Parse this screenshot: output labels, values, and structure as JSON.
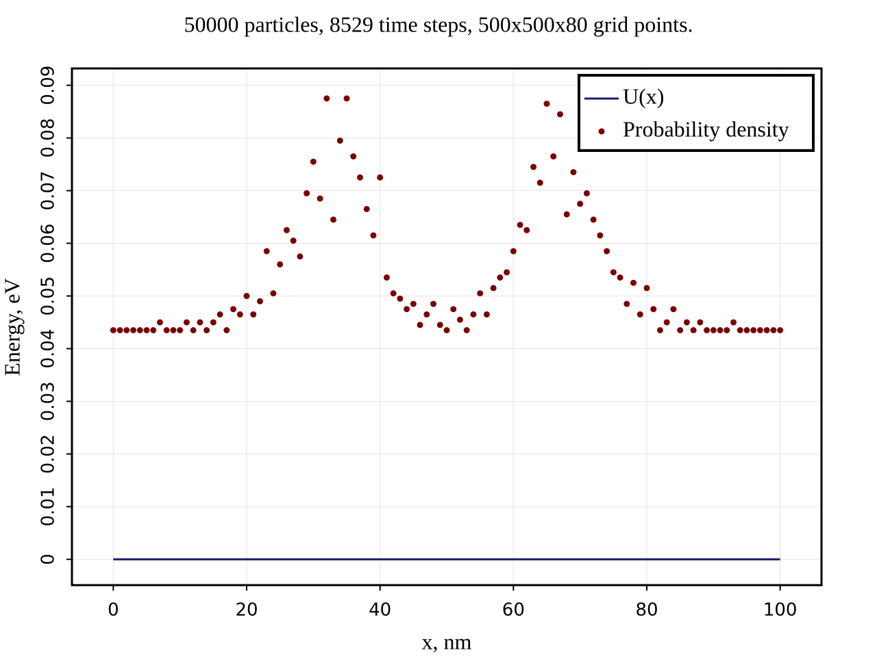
{
  "chart_data": {
    "type": "scatter",
    "title": "50000 particles, 8529 time steps, 500x500x80 grid points.",
    "xlabel": "x, nm",
    "ylabel": "Energy, eV",
    "xlim": [
      -6.2,
      106.2
    ],
    "ylim": [
      -0.0049,
      0.0932
    ],
    "xticks": [
      0,
      20,
      40,
      60,
      80,
      100
    ],
    "yticks": [
      0,
      0.01,
      0.02,
      0.03,
      0.04,
      0.05,
      0.06,
      0.07,
      0.08,
      0.09
    ],
    "grid": true,
    "legend": "upper right",
    "series": [
      {
        "name": "U(x)",
        "type": "line",
        "color": "#1a1a6e",
        "x": [
          0,
          100
        ],
        "values": [
          0,
          0
        ]
      },
      {
        "name": "Probability density",
        "type": "dot",
        "color": "#7a0000",
        "x": [
          0,
          1,
          2,
          3,
          4,
          5,
          6,
          7,
          8,
          9,
          10,
          11,
          12,
          13,
          14,
          15,
          16,
          17,
          18,
          19,
          20,
          21,
          22,
          23,
          24,
          25,
          26,
          27,
          28,
          29,
          30,
          31,
          32,
          33,
          34,
          35,
          36,
          37,
          38,
          39,
          40,
          41,
          42,
          43,
          44,
          45,
          46,
          47,
          48,
          49,
          50,
          51,
          52,
          53,
          54,
          55,
          56,
          57,
          58,
          59,
          60,
          61,
          62,
          63,
          64,
          65,
          66,
          67,
          68,
          69,
          70,
          71,
          72,
          73,
          74,
          75,
          76,
          77,
          78,
          79,
          80,
          81,
          82,
          83,
          84,
          85,
          86,
          87,
          88,
          89,
          90,
          91,
          92,
          93,
          94,
          95,
          96,
          97,
          98,
          99,
          100
        ],
        "values": [
          0.0435,
          0.0435,
          0.0435,
          0.0435,
          0.0435,
          0.0435,
          0.0435,
          0.045,
          0.0435,
          0.0435,
          0.0435,
          0.045,
          0.0435,
          0.045,
          0.0435,
          0.045,
          0.0465,
          0.0435,
          0.0475,
          0.0465,
          0.05,
          0.0465,
          0.049,
          0.0585,
          0.0505,
          0.056,
          0.0625,
          0.0605,
          0.0575,
          0.0695,
          0.0755,
          0.0685,
          0.0875,
          0.0645,
          0.0795,
          0.0875,
          0.0765,
          0.0725,
          0.0665,
          0.0615,
          0.0725,
          0.0535,
          0.0505,
          0.0495,
          0.0475,
          0.0485,
          0.0445,
          0.0465,
          0.0485,
          0.0445,
          0.0435,
          0.0475,
          0.0455,
          0.0435,
          0.0465,
          0.0505,
          0.0465,
          0.0515,
          0.0535,
          0.0545,
          0.0585,
          0.0635,
          0.0625,
          0.0745,
          0.0715,
          0.0865,
          0.0765,
          0.0845,
          0.0655,
          0.0735,
          0.0675,
          0.0695,
          0.0645,
          0.0615,
          0.0585,
          0.0545,
          0.0535,
          0.0485,
          0.0525,
          0.0465,
          0.0515,
          0.0475,
          0.0435,
          0.045,
          0.0475,
          0.0435,
          0.045,
          0.0435,
          0.045,
          0.0435,
          0.0435,
          0.0435,
          0.0435,
          0.045,
          0.0435,
          0.0435,
          0.0435,
          0.0435,
          0.0435,
          0.0435,
          0.0435
        ]
      }
    ]
  }
}
